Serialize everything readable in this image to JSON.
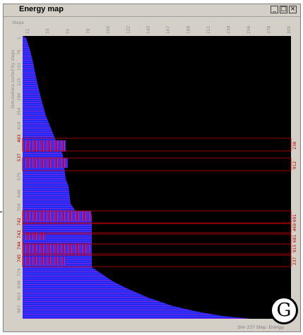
{
  "window": {
    "title": "Energy map",
    "minimize_glyph": "_",
    "maximize_glyph": "□",
    "close_glyph": "×"
  },
  "axes": {
    "top_title": "Steps",
    "left_title": "Simulations sorted by steps",
    "x_ticks": [
      "11",
      "33",
      "55",
      "78",
      "100",
      "122",
      "145",
      "167",
      "189",
      "211",
      "234",
      "256",
      "278",
      "300"
    ],
    "y_ticks": [
      "1",
      "76",
      "151",
      "225",
      "290",
      "354",
      "419",
      "483",
      "537",
      "575",
      "640",
      "704",
      "742",
      "743",
      "744",
      "745",
      "774",
      "838",
      "903",
      "967"
    ]
  },
  "highlights": [
    {
      "left_label": "483",
      "right_label": "238"
    },
    {
      "left_label": "537",
      "right_label": "912"
    },
    {
      "left_label": "742",
      "right_label": "691"
    },
    {
      "left_label": "743",
      "right_label": "469"
    },
    {
      "left_label": "744",
      "right_label": "681"
    },
    {
      "left_label": "745",
      "right_label": "915"
    },
    {
      "left_label": "746",
      "right_label": "237"
    }
  ],
  "status": "Sim 237 Step: Energy:",
  "logo_letter": "G",
  "colors": {
    "background": "#000000",
    "energy_low": "#2a2aff",
    "energy_high": "#ff1a4a",
    "highlight_box": "#c00000"
  }
}
